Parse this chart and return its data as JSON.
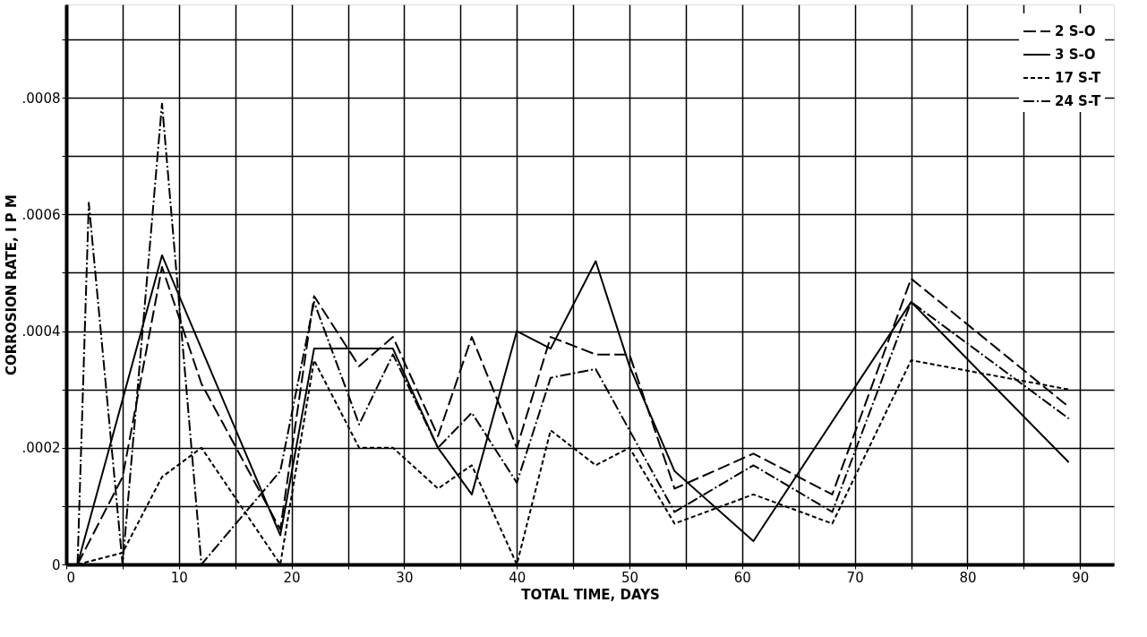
{
  "chart_data": {
    "type": "line",
    "xlabel": "TOTAL TIME, DAYS",
    "ylabel": "CORROSION RATE, I P M",
    "xlim": [
      0,
      93
    ],
    "xticks": [
      0,
      {
        "value": 5,
        "label": null
      },
      10,
      {
        "value": 15,
        "label": null
      },
      20,
      {
        "value": 25,
        "label": null
      },
      30,
      {
        "value": 35,
        "label": null
      },
      40,
      {
        "value": 45,
        "label": null
      },
      50,
      {
        "value": 55,
        "label": null
      },
      60,
      {
        "value": 65,
        "label": null
      },
      70,
      {
        "value": 75,
        "label": null
      },
      80,
      {
        "value": 85,
        "label": null
      },
      90
    ],
    "ylim": [
      0,
      0.00096
    ],
    "yticks": [
      0,
      {
        "value": 0.0001,
        "label": null
      },
      {
        "value": 0.0002,
        "label": ".0002"
      },
      {
        "value": 0.0003,
        "label": null
      },
      {
        "value": 0.0004,
        "label": ".0004"
      },
      {
        "value": 0.0005,
        "label": null
      },
      {
        "value": 0.0006,
        "label": ".0006"
      },
      {
        "value": 0.0007,
        "label": null
      },
      {
        "value": 0.0008,
        "label": ".0008"
      },
      {
        "value": 0.0009,
        "label": null
      }
    ],
    "grid": true,
    "legend": "top right",
    "marker": "none",
    "series": [
      {
        "name": "2 S-O",
        "color": "#000000",
        "line_style": "dashed",
        "x": [
          1,
          5,
          8.5,
          12,
          19,
          22,
          26,
          29,
          33,
          36,
          40,
          43,
          47,
          50,
          54,
          61,
          68,
          75,
          89
        ],
        "values": [
          0,
          0.00015,
          0.00051,
          0.00031,
          6e-05,
          0.00046,
          0.00034,
          0.00039,
          0.00022,
          0.00039,
          0.0002,
          0.00039,
          0.00036,
          0.00036,
          0.00013,
          0.00019,
          0.00012,
          0.00049,
          0.00027
        ]
      },
      {
        "name": "3 S-O",
        "color": "#000000",
        "line_style": "solid",
        "x": [
          1,
          8.5,
          19,
          22,
          29,
          33,
          36,
          40,
          43,
          47,
          50,
          54,
          61,
          75,
          89
        ],
        "values": [
          0,
          0.00053,
          5e-05,
          0.00037,
          0.00037,
          0.0002,
          0.00012,
          0.0004,
          0.00037,
          0.00052,
          0.00034,
          0.00016,
          4e-05,
          0.00045,
          0.000175
        ]
      },
      {
        "name": "17 S-T",
        "color": "#000000",
        "line_style": "dotted",
        "x": [
          1,
          5,
          8.5,
          12,
          19,
          22,
          26,
          29,
          33,
          36,
          40,
          43,
          47,
          50,
          54,
          61,
          68,
          75,
          89
        ],
        "values": [
          0,
          2e-05,
          0.00015,
          0.0002,
          0,
          0.00035,
          0.0002,
          0.0002,
          0.00013,
          0.00017,
          0,
          0.00023,
          0.00017,
          0.0002,
          7e-05,
          0.00012,
          7e-05,
          0.00035,
          0.0003
        ]
      },
      {
        "name": "24 S-T",
        "color": "#000000",
        "line_style": "dashdot",
        "x": [
          1,
          2,
          5,
          8.5,
          12,
          19,
          22,
          26,
          29,
          33,
          36,
          40,
          43,
          47,
          50,
          54,
          61,
          68,
          75,
          89
        ],
        "values": [
          0,
          0.00062,
          0,
          0.00079,
          0,
          0.00016,
          0.00045,
          0.00024,
          0.00036,
          0.0002,
          0.00026,
          0.00014,
          0.00032,
          0.000335,
          0.00023,
          9e-05,
          0.00017,
          9e-05,
          0.00045,
          0.00025
        ]
      }
    ]
  }
}
